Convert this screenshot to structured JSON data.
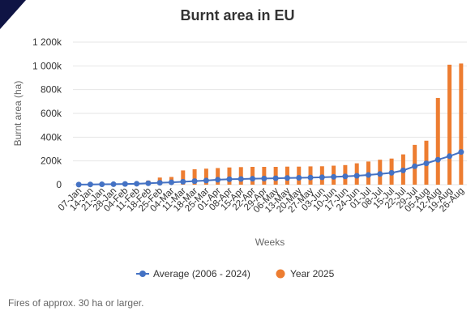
{
  "colors": {
    "average": "#4472c4",
    "year2025": "#ed7d31",
    "corner": "#0f1444",
    "grid": "#e6e6e6"
  },
  "caption": "Fires of approx. 30 ha or larger.",
  "chart_data": {
    "type": "bar",
    "title": "Burnt area in EU",
    "xlabel": "Weeks",
    "ylabel": "Burnt area (ha)",
    "ylim": [
      0,
      1200000
    ],
    "yticks": [
      0,
      200000,
      400000,
      600000,
      800000,
      1000000,
      1200000
    ],
    "ytick_labels": [
      "0",
      "200k",
      "400k",
      "600k",
      "800k",
      "1 000k",
      "1 200k"
    ],
    "grid": true,
    "legend_position": "bottom",
    "categories": [
      "07-Jan",
      "14-Jan",
      "21-Jan",
      "28-Jan",
      "04-Feb",
      "11-Feb",
      "18-Feb",
      "25-Feb",
      "04-Mar",
      "11-Mar",
      "18-Mar",
      "25-Mar",
      "01-Apr",
      "08-Apr",
      "15-Apr",
      "22-Apr",
      "29-Apr",
      "06-May",
      "13-May",
      "20-May",
      "27-May",
      "03-Jun",
      "10-Jun",
      "17-Jun",
      "24-Jun",
      "01-Jul",
      "08-Jul",
      "15-Jul",
      "22-Jul",
      "29-Jul",
      "05-Aug",
      "12-Aug",
      "19-Aug",
      "26-Aug"
    ],
    "series": [
      {
        "name": "Average (2006 - 2024)",
        "type": "line",
        "values": [
          1000,
          2000,
          3000,
          4000,
          6000,
          8000,
          12000,
          16000,
          20000,
          25000,
          30000,
          35000,
          42000,
          46000,
          48000,
          50000,
          52000,
          54000,
          56000,
          58000,
          60000,
          62000,
          66000,
          70000,
          75000,
          82000,
          90000,
          100000,
          120000,
          155000,
          180000,
          210000,
          240000,
          275000
        ]
      },
      {
        "name": "Year 2025",
        "type": "bar",
        "values": [
          3000,
          5000,
          7000,
          8000,
          8000,
          12000,
          35000,
          60000,
          65000,
          120000,
          130000,
          135000,
          140000,
          145000,
          148000,
          150000,
          150000,
          150000,
          152000,
          152000,
          154000,
          155000,
          160000,
          165000,
          180000,
          195000,
          210000,
          220000,
          255000,
          335000,
          370000,
          730000,
          1010000,
          1020000
        ]
      }
    ]
  }
}
